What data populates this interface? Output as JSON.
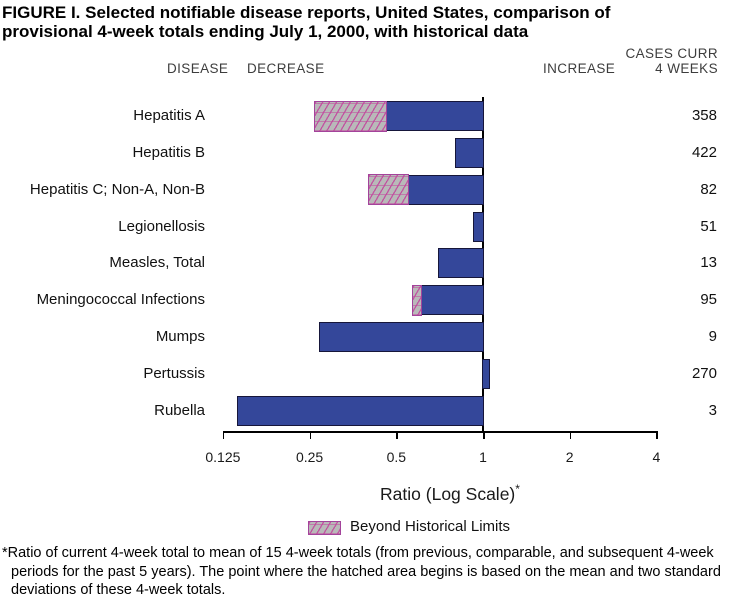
{
  "title": {
    "line1": "FIGURE I. Selected notifiable disease reports, United States, comparison of",
    "line2": "provisional 4-week totals ending July 1, 2000, with historical data"
  },
  "headers": {
    "disease": "DISEASE",
    "decrease": "DECREASE",
    "increase": "INCREASE",
    "cases_line1": "CASES CURR",
    "cases_line2": "4 WEEKS"
  },
  "chart_data": {
    "type": "bar",
    "orientation": "horizontal",
    "scale": "log2",
    "title": "FIGURE I. Selected notifiable disease reports, United States, comparison of provisional 4-week totals ending July 1, 2000, with historical data",
    "xlabel": "Ratio (Log Scale)",
    "xlabel_sup": "*",
    "axis": {
      "ticks": [
        0.125,
        0.25,
        0.5,
        1,
        2,
        4
      ],
      "tick_labels": [
        "0.125",
        "0.25",
        "0.5",
        "1",
        "2",
        "4"
      ],
      "range": [
        0.125,
        4
      ],
      "baseline": 1
    },
    "rows": [
      {
        "disease": "Hepatitis A",
        "ratio": 0.26,
        "beyond_limit_from": 0.46,
        "cases": "358"
      },
      {
        "disease": "Hepatitis B",
        "ratio": 0.8,
        "beyond_limit_from": null,
        "cases": "422"
      },
      {
        "disease": "Hepatitis C; Non-A, Non-B",
        "ratio": 0.4,
        "beyond_limit_from": 0.55,
        "cases": "82"
      },
      {
        "disease": "Legionellosis",
        "ratio": 0.92,
        "beyond_limit_from": null,
        "cases": "51"
      },
      {
        "disease": "Measles, Total",
        "ratio": 0.7,
        "beyond_limit_from": null,
        "cases": "13"
      },
      {
        "disease": "Meningococcal Infections",
        "ratio": 0.57,
        "beyond_limit_from": 0.61,
        "cases": "95"
      },
      {
        "disease": "Mumps",
        "ratio": 0.27,
        "beyond_limit_from": null,
        "cases": "9"
      },
      {
        "disease": "Pertussis",
        "ratio": 1.06,
        "beyond_limit_from": null,
        "cases": "270"
      },
      {
        "disease": "Rubella",
        "ratio": 0.14,
        "beyond_limit_from": null,
        "cases": "3"
      }
    ],
    "legend": {
      "label": "Beyond Historical Limits",
      "swatch": "hatched-gray-magenta"
    }
  },
  "footnote": "*Ratio of current 4-week total to mean of 15 4-week totals (from previous, comparable, and subsequent 4-week periods for the past 5 years). The point where the hatched area begins is based on the mean and two standard deviations of these 4-week totals.",
  "colors": {
    "bar_fill": "#34479a",
    "bar_border": "#16163a",
    "hatch_bg": "#b9b9b9",
    "hatch_line": "#c2499e",
    "hatch_border": "#a3439b"
  }
}
